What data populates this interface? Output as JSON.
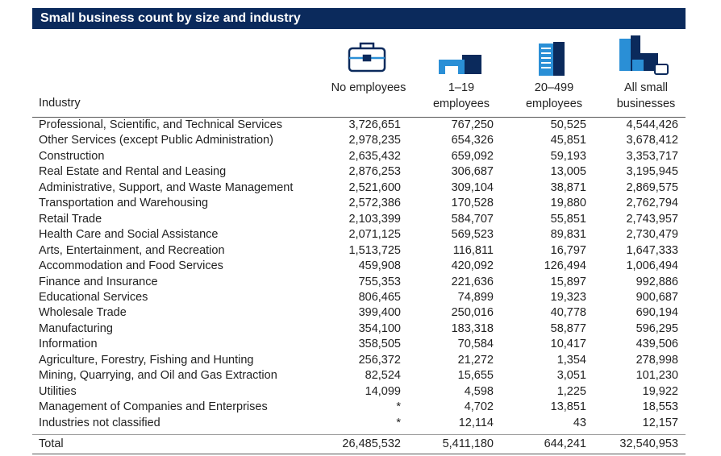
{
  "header": {
    "title": "Small business count by size and industry"
  },
  "table": {
    "columns": [
      "Industry",
      "No employees",
      "1–19 employees",
      "20–499 employees",
      "All small businesses"
    ],
    "rows": [
      [
        "Professional, Scientific, and Technical Services",
        "3,726,651",
        "767,250",
        "50,525",
        "4,544,426"
      ],
      [
        "Other Services (except Public Administration)",
        "2,978,235",
        "654,326",
        "45,851",
        "3,678,412"
      ],
      [
        "Construction",
        "2,635,432",
        "659,092",
        "59,193",
        "3,353,717"
      ],
      [
        "Real Estate and Rental and Leasing",
        "2,876,253",
        "306,687",
        "13,005",
        "3,195,945"
      ],
      [
        "Administrative, Support, and Waste Management",
        "2,521,600",
        "309,104",
        "38,871",
        "2,869,575"
      ],
      [
        "Transportation and Warehousing",
        "2,572,386",
        "170,528",
        "19,880",
        "2,762,794"
      ],
      [
        "Retail Trade",
        "2,103,399",
        "584,707",
        "55,851",
        "2,743,957"
      ],
      [
        "Health Care and Social Assistance",
        "2,071,125",
        "569,523",
        "89,831",
        "2,730,479"
      ],
      [
        "Arts, Entertainment, and Recreation",
        "1,513,725",
        "116,811",
        "16,797",
        "1,647,333"
      ],
      [
        "Accommodation and Food Services",
        "459,908",
        "420,092",
        "126,494",
        "1,006,494"
      ],
      [
        "Finance and Insurance",
        "755,353",
        "221,636",
        "15,897",
        "992,886"
      ],
      [
        "Educational Services",
        "806,465",
        "74,899",
        "19,323",
        "900,687"
      ],
      [
        "Wholesale Trade",
        "399,400",
        "250,016",
        "40,778",
        "690,194"
      ],
      [
        "Manufacturing",
        "354,100",
        "183,318",
        "58,877",
        "596,295"
      ],
      [
        "Information",
        "358,505",
        "70,584",
        "10,417",
        "439,506"
      ],
      [
        "Agriculture, Forestry, Fishing and Hunting",
        "256,372",
        "21,272",
        "1,354",
        "278,998"
      ],
      [
        "Mining, Quarrying, and Oil and Gas Extraction",
        "82,524",
        "15,655",
        "3,051",
        "101,230"
      ],
      [
        "Utilities",
        "14,099",
        "4,598",
        "1,225",
        "19,922"
      ],
      [
        "Management of Companies and Enterprises",
        "*",
        "4,702",
        "13,851",
        "18,553"
      ],
      [
        "Industries not classified",
        "*",
        "12,114",
        "43",
        "12,157"
      ]
    ],
    "total": [
      "Total",
      "26,485,532",
      "5,411,180",
      "644,241",
      "32,540,953"
    ]
  }
}
